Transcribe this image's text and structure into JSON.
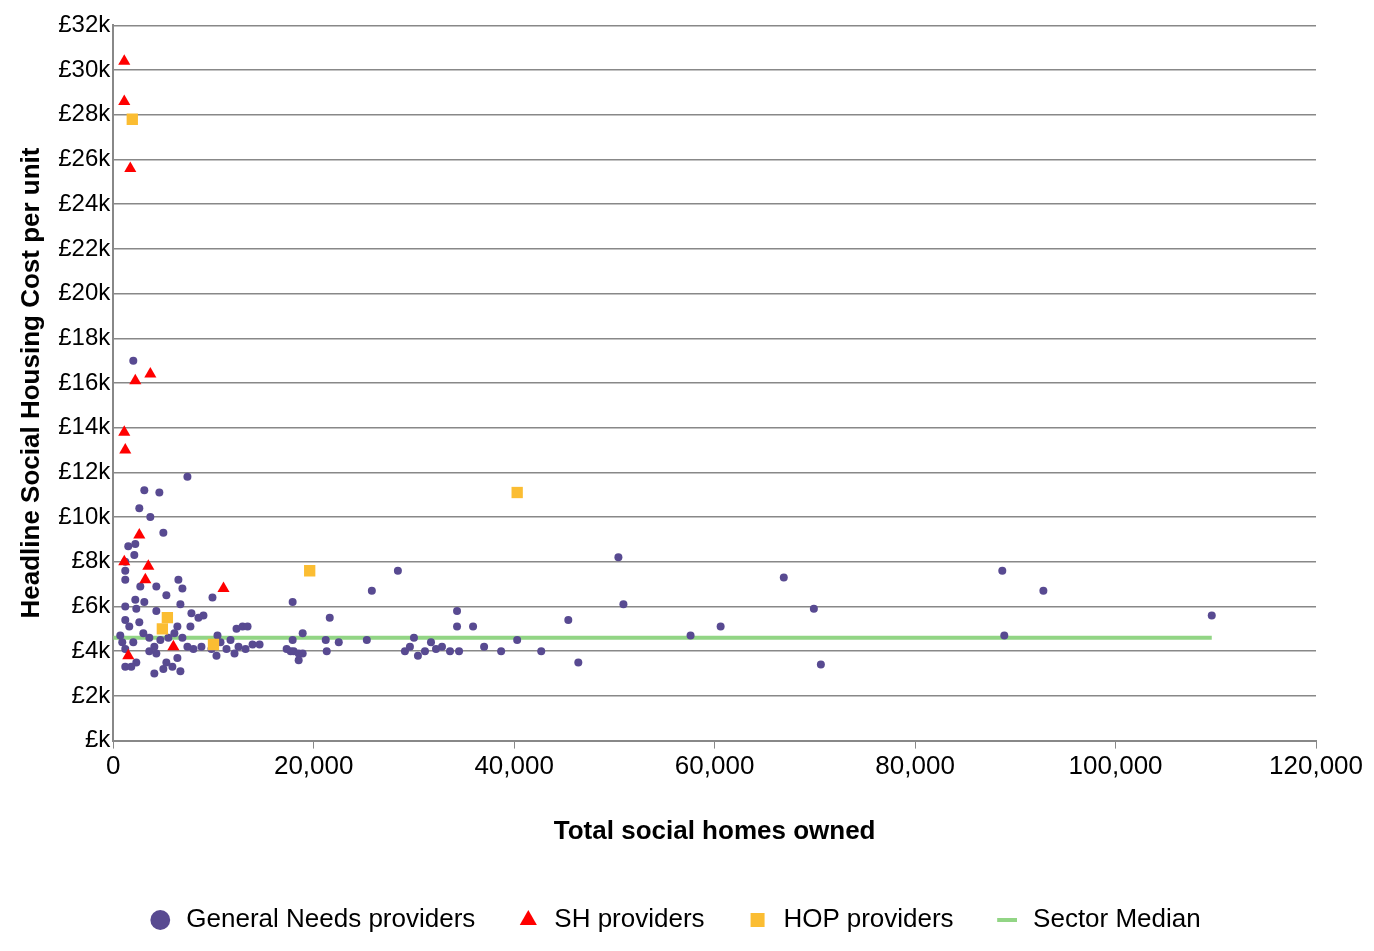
{
  "chart_data": {
    "type": "scatter",
    "xlabel": "Total social homes owned",
    "ylabel": "Headline Social Housing Cost per unit",
    "xlim": [
      0,
      120000
    ],
    "xticks": [
      0,
      {
        "value": 20000,
        "label": "20,000"
      },
      {
        "value": 40000,
        "label": "40,000"
      },
      {
        "value": 60000,
        "label": "60,000"
      },
      {
        "value": 80000,
        "label": "80,000"
      },
      {
        "value": 100000,
        "label": "100,000"
      },
      {
        "value": 120000,
        "label": "120,000"
      }
    ],
    "ylim": [
      0,
      32
    ],
    "yticks": [
      {
        "value": 0,
        "label": "£k"
      },
      {
        "value": 2,
        "label": "£2k"
      },
      {
        "value": 4,
        "label": "£4k"
      },
      {
        "value": 6,
        "label": "£6k"
      },
      {
        "value": 8,
        "label": "£8k"
      },
      {
        "value": 10,
        "label": "£10k"
      },
      {
        "value": 12,
        "label": "£12k"
      },
      {
        "value": 14,
        "label": "£14k"
      },
      {
        "value": 16,
        "label": "£16k"
      },
      {
        "value": 18,
        "label": "£18k"
      },
      {
        "value": 20,
        "label": "£20k"
      },
      {
        "value": 22,
        "label": "£22k"
      },
      {
        "value": 24,
        "label": "£24k"
      },
      {
        "value": 26,
        "label": "£26k"
      },
      {
        "value": 28,
        "label": "£28k"
      },
      {
        "value": 30,
        "label": "£30k"
      },
      {
        "value": 32,
        "label": "£32k"
      }
    ],
    "grid": "y",
    "legend": "bottom",
    "series": [
      {
        "name": "General Needs providers",
        "type": "scatter",
        "marker": "circle",
        "color": "#584a91",
        "x": [
          2000,
          7400,
          3100,
          4600,
          2600,
          3700,
          5000,
          1500,
          2200,
          2100,
          1200,
          1200,
          1200,
          6500,
          6900,
          2700,
          4300,
          5300,
          2200,
          3100,
          1200,
          2300,
          4300,
          6700,
          7800,
          9000,
          9900,
          8500,
          1200,
          1600,
          2600,
          6400,
          7700,
          12300,
          12900,
          13400,
          10400,
          11700,
          700,
          900,
          1200,
          2000,
          3000,
          3600,
          4100,
          4700,
          5500,
          6100,
          6900,
          7400,
          8000,
          8800,
          9800,
          10700,
          11300,
          12100,
          12500,
          13200,
          13900,
          14600,
          3600,
          4300,
          6400,
          5300,
          5900,
          2300,
          1200,
          1800,
          4100,
          5000,
          6700,
          10300,
          17900,
          17700,
          18000,
          18500,
          18500,
          18900,
          18900,
          17900,
          17300,
          21200,
          21300,
          21600,
          22500,
          25300,
          25800,
          28400,
          29100,
          29600,
          30000,
          30400,
          31100,
          31700,
          32200,
          32800,
          33600,
          34300,
          34300,
          34500,
          35900,
          37000,
          38700,
          40300,
          42700,
          45400,
          46400,
          50400,
          50900,
          57600,
          60600,
          66900,
          69900,
          70600,
          88700,
          88900,
          92800,
          109600
        ],
        "values": [
          17.0,
          11.8,
          11.2,
          11.1,
          10.4,
          10.0,
          9.3,
          8.7,
          8.8,
          8.3,
          8.0,
          7.6,
          7.2,
          7.2,
          6.8,
          6.9,
          6.9,
          6.5,
          6.3,
          6.2,
          6.0,
          5.9,
          5.8,
          6.1,
          5.7,
          5.6,
          6.4,
          5.5,
          5.4,
          5.1,
          5.3,
          5.1,
          5.1,
          5.0,
          5.1,
          5.1,
          4.7,
          4.5,
          4.7,
          4.4,
          4.1,
          4.4,
          4.8,
          4.6,
          4.2,
          4.5,
          4.6,
          4.8,
          4.6,
          4.2,
          4.1,
          4.2,
          4.1,
          4.4,
          4.1,
          3.9,
          4.2,
          4.1,
          4.3,
          4.3,
          4.0,
          3.9,
          3.7,
          3.5,
          3.3,
          3.5,
          3.3,
          3.3,
          3.0,
          3.2,
          3.1,
          3.8,
          4.5,
          4.0,
          4.0,
          3.9,
          3.6,
          3.9,
          4.8,
          6.2,
          4.1,
          4.5,
          4.0,
          5.5,
          4.4,
          4.5,
          6.7,
          7.6,
          4.0,
          4.2,
          4.6,
          3.8,
          4.0,
          4.4,
          4.1,
          4.2,
          4.0,
          5.8,
          5.1,
          4.0,
          5.1,
          4.2,
          4.0,
          4.5,
          4.0,
          5.4,
          3.5,
          8.2,
          6.1,
          4.7,
          5.1,
          7.3,
          5.9,
          3.4,
          7.6,
          4.7,
          6.7,
          5.6
        ]
      },
      {
        "name": "SH providers",
        "type": "scatter",
        "marker": "triangle",
        "color": "#ff0000",
        "x": [
          1100,
          1100,
          1700,
          2200,
          3700,
          1100,
          1200,
          2600,
          1100,
          3500,
          3200,
          11000,
          6000,
          1500
        ],
        "values": [
          30.4,
          28.6,
          25.6,
          16.1,
          16.4,
          13.8,
          13.0,
          9.2,
          8.0,
          7.8,
          7.2,
          6.8,
          4.2,
          3.8
        ]
      },
      {
        "name": "HOP providers",
        "type": "scatter",
        "marker": "square",
        "color": "#fbbd32",
        "x": [
          1900,
          40300,
          19600,
          5400,
          4900,
          10000
        ],
        "values": [
          27.8,
          11.1,
          7.6,
          5.5,
          5.0,
          4.3
        ]
      },
      {
        "name": "Sector Median",
        "type": "line",
        "marker": "none",
        "line_style": "solid",
        "color": "#92d585",
        "x": [
          0,
          109600
        ],
        "values": [
          4.6,
          4.6
        ]
      }
    ]
  }
}
